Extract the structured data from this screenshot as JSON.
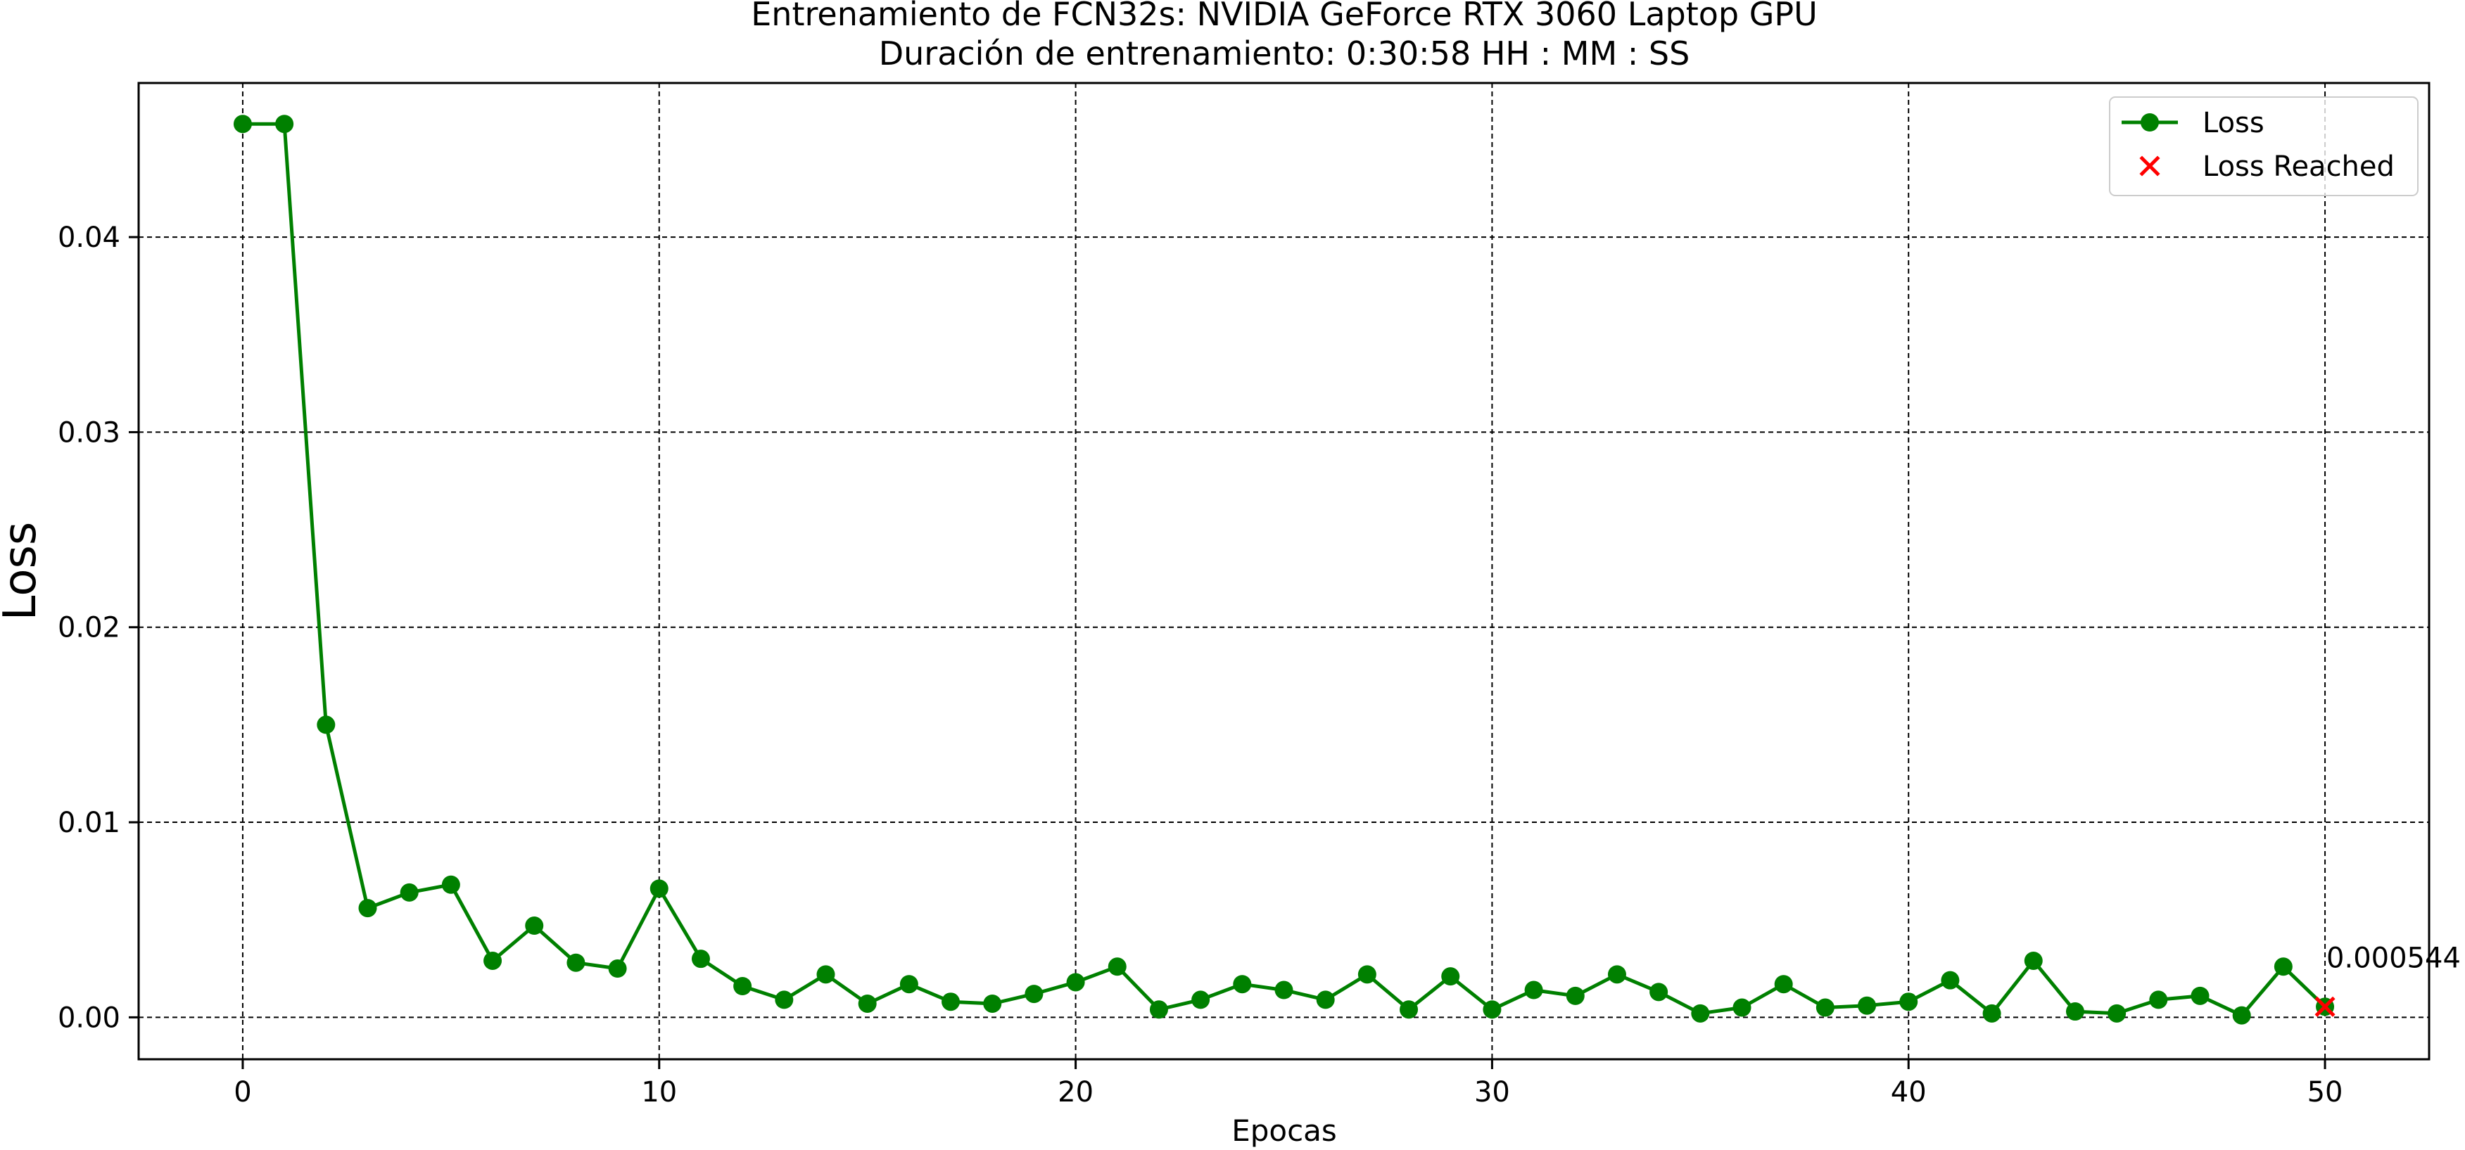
{
  "chart_data": {
    "type": "line",
    "title": "Entrenamiento de FCN32s: NVIDIA GeForce RTX 3060 Laptop GPU",
    "subtitle": "Duración de entrenamiento: 0:30:58 HH : MM : SS",
    "xlabel": "Epocas",
    "ylabel": "Loss",
    "xlim": [
      -2.5,
      52.5
    ],
    "ylim": [
      -0.00215,
      0.0479
    ],
    "x_ticks": [
      0,
      10,
      20,
      30,
      40,
      50
    ],
    "y_ticks": [
      0.0,
      0.01,
      0.02,
      0.03,
      0.04
    ],
    "y_tick_labels": [
      "0.00",
      "0.01",
      "0.02",
      "0.03",
      "0.04"
    ],
    "grid": true,
    "legend_position": "top-right",
    "series": [
      {
        "name": "Loss",
        "color": "#008000",
        "marker": "circle",
        "x": [
          0,
          1,
          2,
          3,
          4,
          5,
          6,
          7,
          8,
          9,
          10,
          11,
          12,
          13,
          14,
          15,
          16,
          17,
          18,
          19,
          20,
          21,
          22,
          23,
          24,
          25,
          26,
          27,
          28,
          29,
          30,
          31,
          32,
          33,
          34,
          35,
          36,
          37,
          38,
          39,
          40,
          41,
          42,
          43,
          44,
          45,
          46,
          47,
          48,
          49,
          50
        ],
        "values": [
          0.0458,
          0.0458,
          0.015,
          0.0056,
          0.0064,
          0.0068,
          0.0029,
          0.0047,
          0.0028,
          0.0025,
          0.0066,
          0.003,
          0.0016,
          0.0009,
          0.0022,
          0.0007,
          0.0017,
          0.0008,
          0.0007,
          0.0012,
          0.0018,
          0.0026,
          0.0004,
          0.0009,
          0.0017,
          0.0014,
          0.0009,
          0.0022,
          0.0004,
          0.0021,
          0.0004,
          0.0014,
          0.0011,
          0.0022,
          0.0013,
          0.0002,
          0.0005,
          0.0017,
          0.0005,
          0.0006,
          0.0008,
          0.0019,
          0.0002,
          0.0029,
          0.0003,
          0.0002,
          0.0009,
          0.0011,
          0.0001,
          0.0026,
          0.000544
        ]
      },
      {
        "name": "Loss Reached",
        "color": "#ff0000",
        "marker": "x",
        "x": [
          50
        ],
        "values": [
          0.000544
        ]
      }
    ],
    "annotations": [
      {
        "x": 50,
        "y": 0.000544,
        "text": "0.000544"
      }
    ]
  }
}
